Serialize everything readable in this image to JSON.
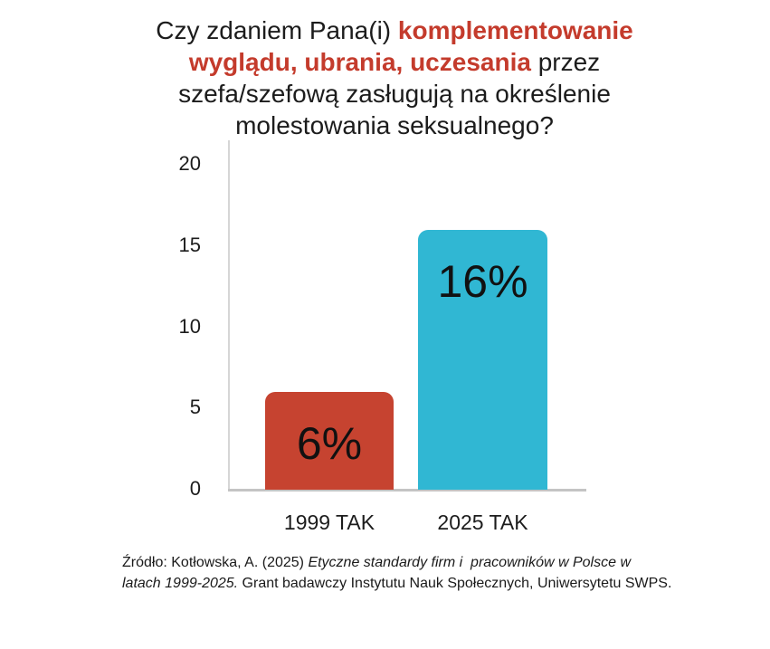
{
  "title": {
    "line1_black": "Czy zdaniem Pana(i) ",
    "line1_red": "komplementowanie",
    "line2_red": "wyglądu, ubrania, uczesania",
    "line2_black": " przez",
    "line3_black": "szefa/szefową zasługują na określenie",
    "line4_black": "molestowania seksualnego?",
    "accent_color": "#c43b2c"
  },
  "chart_data": {
    "type": "bar",
    "title": "Czy zdaniem Pana(i) komplementowanie wyglądu, ubrania, uczesania przez szefa/szefową zasługują na określenie molestowania seksualnego?",
    "categories": [
      "1999 TAK",
      "2025 TAK"
    ],
    "values": [
      6,
      16
    ],
    "value_labels": [
      "6%",
      "16%"
    ],
    "bar_colors": [
      "#c64330",
      "#30b7d3"
    ],
    "xlabel": "",
    "ylabel": "",
    "ylim": [
      0,
      20
    ],
    "yticks": [
      0,
      5,
      10,
      15,
      20
    ],
    "grid": false,
    "legend": "none",
    "value_label_color": "#111111",
    "axis_line_color": "#c4c4c4"
  },
  "footer": {
    "line1_regular": "Źródło: Kotłowska, A. (2025) ",
    "line1_italic": "Etyczne standardy firm i  pracowników w Polsce w",
    "line2_italic": "latach 1999-2025.",
    "line2_regular": " Grant badawczy Instytutu Nauk Społecznych, Uniwersytetu SWPS."
  }
}
